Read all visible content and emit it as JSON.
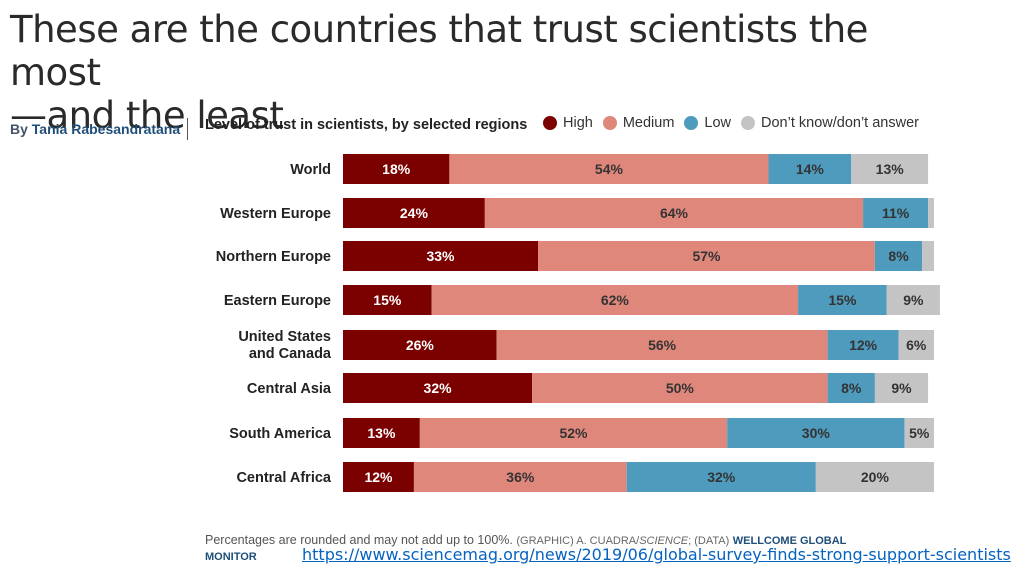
{
  "title_line1": "These are the countries that trust scientists the most",
  "title_line2": "—and the least",
  "byline_prefix": "By ",
  "byline_author": "Tania Rabesandratana",
  "subtitle": "Level of trust in scientists, by selected regions",
  "footnote": {
    "main": "Percentages are rounded and may not add up to 100%.",
    "source_a": "(GRAPHIC) A. CUADRA/",
    "source_b": "SCIENCE",
    "source_c": "; (DATA)",
    "monitor_a": "WELLCOME GLOBAL",
    "monitor_b": "MONITOR"
  },
  "url": "https://www.sciencemag.org/news/2019/06/global-survey-finds-strong-support-scientists",
  "colors": {
    "high": "#7b0000",
    "medium": "#e0877c",
    "low": "#4f9bbd",
    "dk": "#c4c4c4"
  },
  "chart_data": {
    "type": "bar",
    "orientation": "horizontal",
    "stacked": true,
    "legend_placement": "top",
    "categories": [
      "World",
      "Western Europe",
      "Northern Europe",
      "Eastern Europe",
      "United States|and Canada",
      "Central Asia",
      "South America",
      "Central Africa"
    ],
    "series": [
      {
        "name": "High",
        "color": "#7b0000",
        "values": [
          18,
          24,
          33,
          15,
          26,
          32,
          13,
          12
        ],
        "labels": [
          "18%",
          "24%",
          "33%",
          "15%",
          "26%",
          "32%",
          "13%",
          "12%"
        ]
      },
      {
        "name": "Medium",
        "color": "#e0877c",
        "values": [
          54,
          64,
          57,
          62,
          56,
          50,
          52,
          36
        ],
        "labels": [
          "54%",
          "64%",
          "57%",
          "62%",
          "56%",
          "50%",
          "52%",
          "36%"
        ]
      },
      {
        "name": "Low",
        "color": "#4f9bbd",
        "values": [
          14,
          11,
          8,
          15,
          12,
          8,
          30,
          32
        ],
        "labels": [
          "14%",
          "11%",
          "8%",
          "15%",
          "12%",
          "8%",
          "30%",
          "32%"
        ]
      },
      {
        "name": "Don’t know/don’t answer",
        "color": "#c4c4c4",
        "values": [
          13,
          1,
          2,
          9,
          6,
          9,
          5,
          20
        ],
        "labels": [
          "13%",
          "",
          "",
          "9%",
          "6%",
          "9%",
          "5%",
          "20%"
        ]
      }
    ]
  }
}
